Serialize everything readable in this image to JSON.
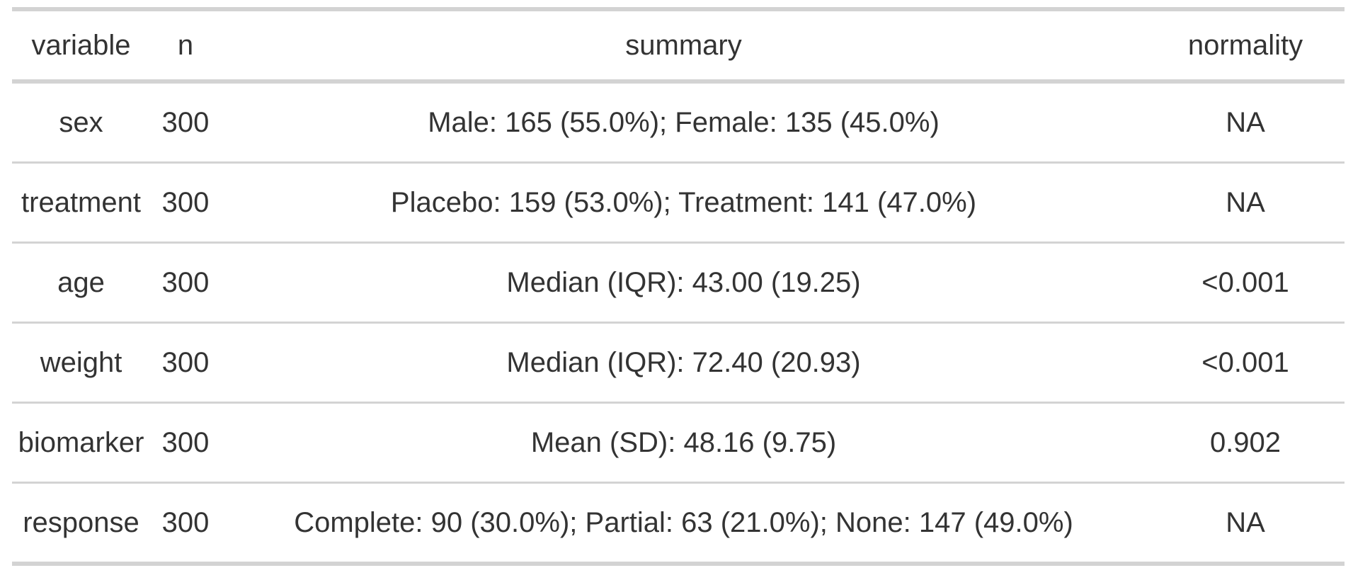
{
  "chart_data": {
    "type": "table",
    "title": "",
    "columns": [
      "variable",
      "n",
      "summary",
      "normality"
    ],
    "rows": [
      [
        "sex",
        "300",
        "Male: 165 (55.0%); Female: 135 (45.0%)",
        "NA"
      ],
      [
        "treatment",
        "300",
        "Placebo: 159 (53.0%); Treatment: 141 (47.0%)",
        "NA"
      ],
      [
        "age",
        "300",
        "Median (IQR): 43.00 (19.25)",
        "<0.001"
      ],
      [
        "weight",
        "300",
        "Median (IQR): 72.40 (20.93)",
        "<0.001"
      ],
      [
        "biomarker",
        "300",
        "Mean (SD): 48.16 (9.75)",
        "0.902"
      ],
      [
        "response",
        "300",
        "Complete: 90 (30.0%); Partial: 63 (21.0%); None: 147 (49.0%)",
        "NA"
      ]
    ],
    "layout": {
      "align": "center",
      "grid": "horizontal-rules-only"
    }
  },
  "colors": {
    "text": "#333333",
    "border": "#d3d3d3",
    "background": "#ffffff"
  }
}
